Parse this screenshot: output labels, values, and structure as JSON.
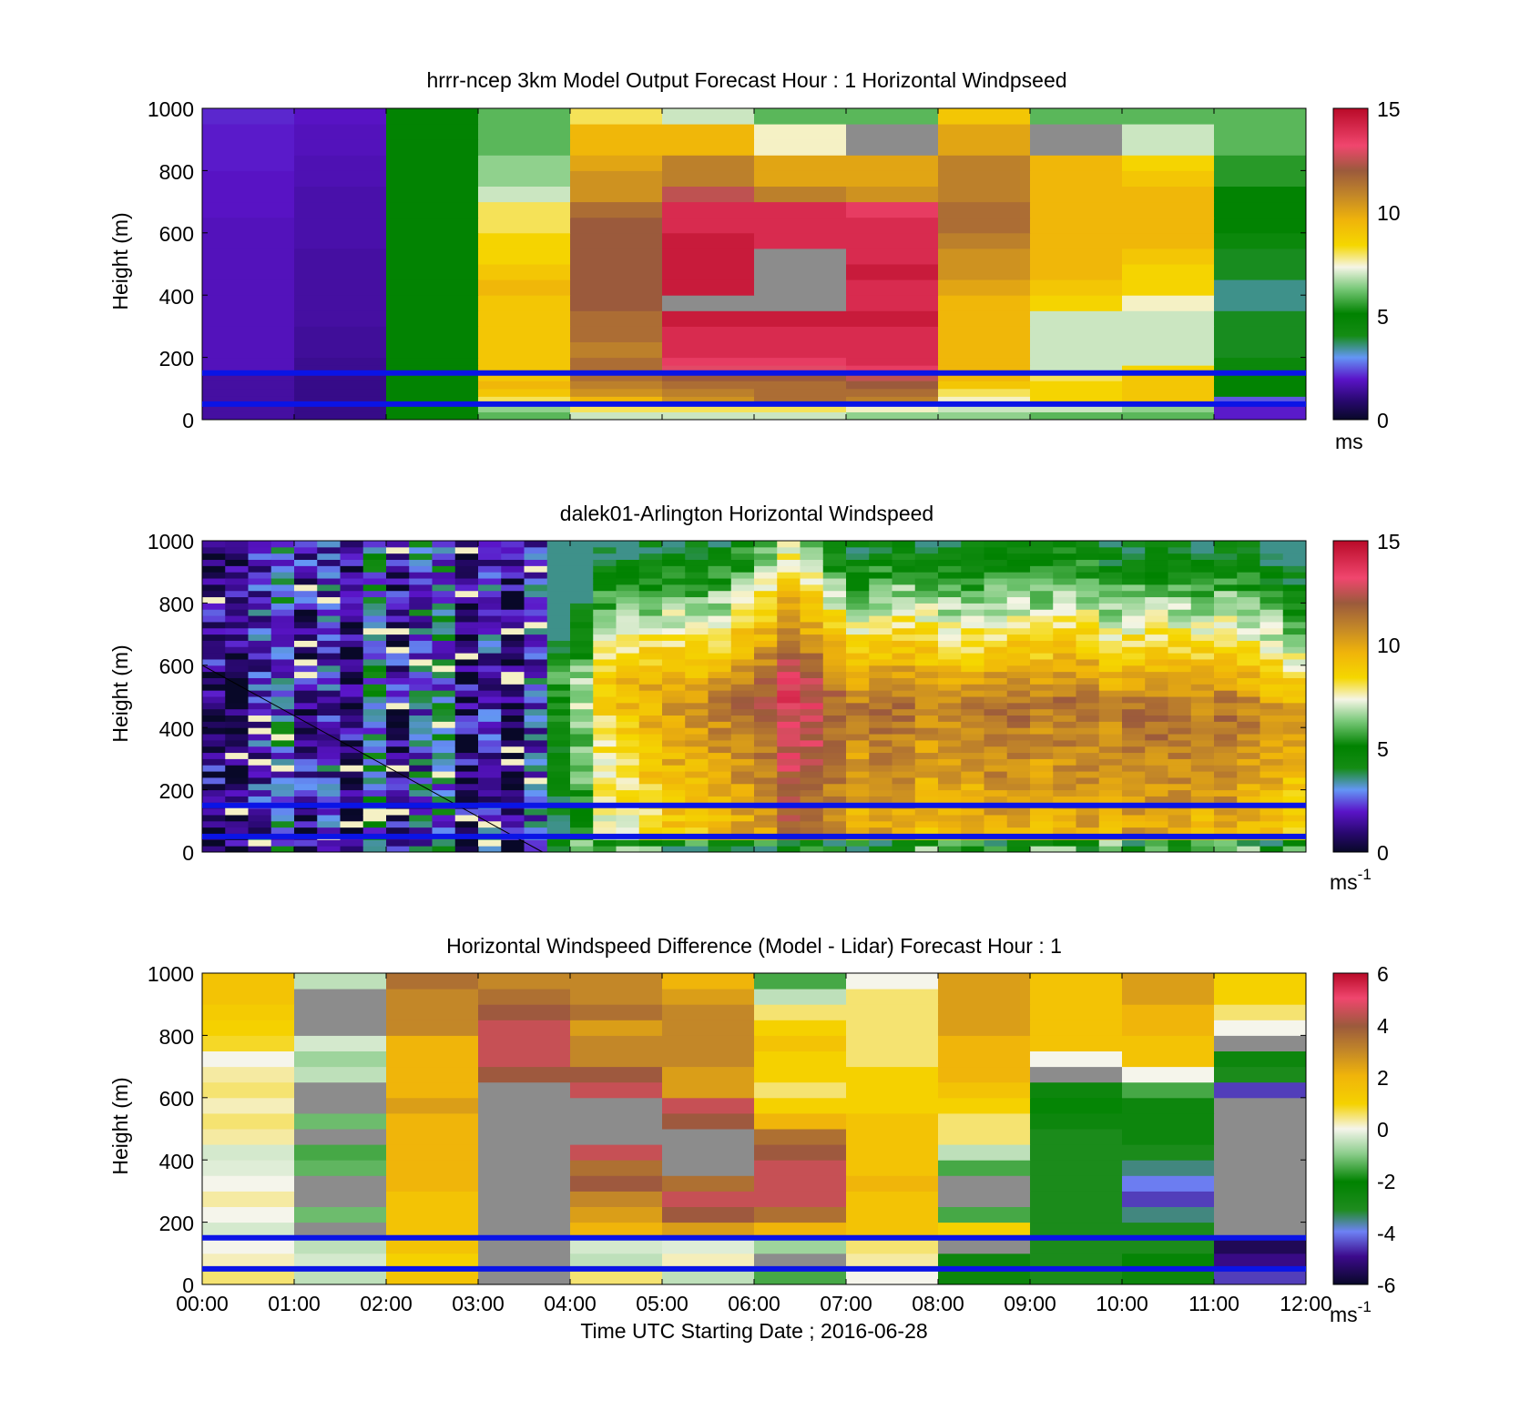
{
  "figure": {
    "x_axis": {
      "label": "Time UTC  Starting Date ; 2016-06-28",
      "tick_labels": [
        "00:00",
        "01:00",
        "02:00",
        "03:00",
        "04:00",
        "05:00",
        "06:00",
        "07:00",
        "08:00",
        "09:00",
        "10:00",
        "11:00",
        "12:00"
      ]
    },
    "y_axis": {
      "label": "Height (m)",
      "tick_labels": [
        "0",
        "200",
        "400",
        "600",
        "800",
        "1000"
      ]
    },
    "reference_lines_m": [
      150,
      50
    ],
    "reference_line_color": "#0a14e6"
  },
  "chart_data": [
    {
      "type": "heatmap",
      "title": "hrrr-ncep 3km Model Output   Forecast Hour : 1 Horizontal Windpseed",
      "xlabel": "",
      "ylabel": "Height (m)",
      "xlim": [
        0,
        12
      ],
      "ylim": [
        0,
        1000
      ],
      "colorbar": {
        "range": [
          0,
          15
        ],
        "ticks": [
          "0",
          "5",
          "10",
          "15"
        ],
        "unit_label": "ms",
        "unit_sup": ""
      },
      "x_hours": [
        0,
        1,
        2,
        3,
        4,
        5,
        6,
        7,
        8,
        9,
        10,
        11
      ],
      "y_levels_m": [
        0,
        25,
        50,
        75,
        100,
        125,
        150,
        175,
        200,
        250,
        300,
        350,
        400,
        450,
        500,
        550,
        600,
        650,
        700,
        750,
        800,
        850,
        900,
        950
      ],
      "values": [
        [
          1.5,
          1.2,
          5.0,
          6.0,
          7.0,
          7.0,
          7.0,
          6.5,
          6.5,
          6.0,
          6.0,
          2.0
        ],
        [
          1.5,
          1.2,
          5.0,
          6.5,
          8.0,
          8.0,
          8.0,
          7.5,
          7.0,
          7.0,
          6.5,
          2.0
        ],
        [
          1.5,
          1.2,
          5.0,
          8.0,
          9.5,
          10.5,
          11.5,
          11.0,
          7.5,
          8.5,
          9.0,
          2.5
        ],
        [
          1.5,
          1.2,
          5.0,
          9.0,
          10.5,
          11.0,
          11.5,
          11.5,
          8.0,
          8.5,
          9.0,
          5.0
        ],
        [
          1.5,
          1.2,
          5.0,
          9.5,
          11.0,
          11.5,
          11.5,
          12.0,
          9.0,
          8.5,
          9.0,
          5.0
        ],
        [
          1.5,
          1.2,
          5.0,
          9.0,
          11.5,
          12.0,
          12.0,
          12.5,
          9.5,
          8.0,
          9.0,
          5.0
        ],
        [
          1.8,
          1.3,
          5.0,
          9.0,
          11.5,
          13.0,
          13.0,
          13.5,
          9.5,
          7.0,
          8.5,
          4.5
        ],
        [
          1.8,
          1.3,
          5.0,
          9.0,
          11.5,
          13.5,
          13.5,
          14.0,
          9.5,
          7.0,
          7.0,
          4.5
        ],
        [
          1.8,
          1.4,
          5.0,
          9.0,
          11.0,
          14.0,
          14.0,
          14.0,
          9.5,
          7.0,
          7.0,
          4.0
        ],
        [
          1.8,
          1.4,
          5.0,
          9.0,
          11.5,
          14.0,
          14.0,
          14.0,
          9.5,
          7.0,
          7.0,
          4.0
        ],
        [
          1.8,
          1.5,
          5.0,
          9.0,
          11.5,
          14.5,
          14.5,
          14.5,
          9.5,
          7.0,
          7.0,
          4.0
        ],
        [
          1.8,
          1.5,
          5.0,
          9.0,
          12.0,
          -1,
          -1,
          14.0,
          9.5,
          8.5,
          7.5,
          3.5
        ],
        [
          1.8,
          1.5,
          5.0,
          9.5,
          12.0,
          14.5,
          -1,
          14.0,
          10.0,
          9.0,
          8.5,
          3.5
        ],
        [
          1.8,
          1.5,
          5.0,
          9.0,
          12.0,
          14.5,
          -1,
          14.5,
          10.5,
          9.5,
          8.5,
          4.0
        ],
        [
          1.8,
          1.5,
          5.0,
          8.5,
          12.0,
          14.5,
          -1,
          14.0,
          10.5,
          9.5,
          9.0,
          4.0
        ],
        [
          1.8,
          1.6,
          5.0,
          8.5,
          12.0,
          14.5,
          14.0,
          14.0,
          11.0,
          9.5,
          9.5,
          4.5
        ],
        [
          1.8,
          1.6,
          5.0,
          8.0,
          12.0,
          14.0,
          14.0,
          14.0,
          11.5,
          9.5,
          9.5,
          5.0
        ],
        [
          1.9,
          1.6,
          5.0,
          8.0,
          11.5,
          14.0,
          14.0,
          13.5,
          11.5,
          9.5,
          9.5,
          5.0
        ],
        [
          1.9,
          1.6,
          5.0,
          7.0,
          10.5,
          12.5,
          11.0,
          10.5,
          11.0,
          9.5,
          9.5,
          5.0
        ],
        [
          1.9,
          1.7,
          5.0,
          6.5,
          10.5,
          11.0,
          10.0,
          10.0,
          11.0,
          9.5,
          9.0,
          5.5
        ],
        [
          2.0,
          1.7,
          5.0,
          6.5,
          10.0,
          11.0,
          10.0,
          10.0,
          11.0,
          9.5,
          8.5,
          5.5
        ],
        [
          2.0,
          1.8,
          5.0,
          6.0,
          9.5,
          9.5,
          7.5,
          -1,
          10.0,
          -1,
          7.0,
          6.0
        ],
        [
          2.0,
          1.8,
          5.0,
          6.0,
          9.5,
          9.5,
          7.5,
          -1,
          10.0,
          -1,
          7.0,
          6.0
        ],
        [
          2.1,
          1.9,
          5.0,
          6.0,
          8.0,
          7.0,
          6.0,
          6.0,
          9.0,
          6.0,
          6.0,
          6.0
        ]
      ]
    },
    {
      "type": "heatmap",
      "title": "dalek01-Arlington  Horizontal Windspeed",
      "xlabel": "",
      "ylabel": "Height (m)",
      "xlim": [
        0,
        12
      ],
      "ylim": [
        0,
        1000
      ],
      "colorbar": {
        "range": [
          0,
          15
        ],
        "ticks": [
          "0",
          "5",
          "10",
          "15"
        ],
        "unit_label": "ms",
        "unit_sup": "-1"
      },
      "profile_times_h": [
        0,
        0.25,
        0.5,
        0.75,
        1,
        1.25,
        1.5,
        1.75,
        2,
        2.25,
        2.5,
        2.75,
        3,
        3.25,
        3.5,
        3.75,
        4,
        4.25,
        4.5,
        4.75,
        5,
        5.25,
        5.5,
        5.75,
        6,
        6.25,
        6.5,
        6.75,
        7,
        7.25,
        7.5,
        7.75,
        8,
        8.25,
        8.5,
        8.75,
        9,
        9.25,
        9.5,
        9.75,
        10,
        10.25,
        10.5,
        10.75,
        11,
        11.25,
        11.5,
        11.75
      ],
      "profile_width_h": 0.25,
      "level_spacing_m": 20,
      "coverage_top_m": [
        1000,
        1000,
        1000,
        1000,
        1000,
        1000,
        1000,
        1000,
        1000,
        1000,
        1000,
        1000,
        1000,
        1000,
        1000,
        1000,
        1000,
        1000,
        1000,
        1000,
        1000,
        1000,
        1000,
        1000,
        1000,
        1000,
        1000,
        1000,
        1000,
        1000,
        1000,
        1000,
        1000,
        1000,
        1000,
        1000,
        1000,
        1000,
        1000,
        1000,
        1000,
        1000,
        1000,
        1000,
        1000,
        1000,
        1000,
        1000
      ],
      "jet": {
        "start_h": 3.6,
        "jet_height_m": [
          0,
          0,
          0,
          0,
          0,
          0,
          0,
          0,
          0,
          0,
          0,
          0,
          0,
          0,
          0,
          560,
          520,
          560,
          540,
          520,
          500,
          480,
          480,
          500,
          520,
          520,
          480,
          460,
          460,
          460,
          470,
          480,
          470,
          460,
          450,
          460,
          470,
          480,
          470,
          450,
          430,
          430,
          440,
          450,
          440,
          450,
          440,
          430
        ],
        "jet_speed_ms": [
          0,
          0,
          0,
          0,
          0,
          0,
          0,
          0,
          0,
          0,
          0,
          0,
          0,
          0,
          0,
          5.5,
          7,
          9,
          9.5,
          10,
          10.5,
          10.5,
          11,
          11.5,
          12,
          13.5,
          13,
          12,
          11,
          11.5,
          11.5,
          11,
          11,
          11,
          11.5,
          11.5,
          11,
          11.5,
          11.5,
          11,
          11.5,
          11.5,
          11.5,
          11,
          11.5,
          11,
          10.5,
          10
        ]
      },
      "early_profile_mean_ms": [
        1.2,
        0.8,
        2.0,
        3.0,
        1.5,
        2.2,
        1.0,
        3.5,
        1.3,
        2.5,
        3.0,
        1.0,
        2.0,
        0.8,
        2.5,
        4.5
      ],
      "annotation_line_m": [
        [
          0,
          600
        ],
        [
          3.7,
          0
        ]
      ]
    },
    {
      "type": "heatmap",
      "title": "Horizontal Windspeed Difference (Model - Lidar) Forecast Hour : 1",
      "xlabel": "Time UTC  Starting Date ; 2016-06-28",
      "ylabel": "Height (m)",
      "xlim": [
        0,
        12
      ],
      "ylim": [
        0,
        1000
      ],
      "colorbar": {
        "range": [
          -6,
          6
        ],
        "ticks": [
          "-6",
          "-4",
          "-2",
          "0",
          "2",
          "4",
          "6"
        ],
        "unit_label": "ms",
        "unit_sup": "-1"
      },
      "x_hours": [
        0,
        1,
        2,
        3,
        4,
        5,
        6,
        7,
        8,
        9,
        10,
        11
      ],
      "y_levels_m": [
        0,
        50,
        100,
        150,
        200,
        250,
        300,
        350,
        400,
        450,
        500,
        550,
        600,
        650,
        700,
        750,
        800,
        850,
        900,
        950
      ],
      "values": [
        [
          0.5,
          -0.5,
          1.5,
          -99,
          0.5,
          -0.5,
          -1.5,
          0.0,
          -2.5,
          -3.0,
          -2.5,
          -4.5
        ],
        [
          0.2,
          -0.3,
          1.0,
          -99,
          -0.5,
          0.2,
          -1.0,
          0.3,
          -2.5,
          -3.0,
          -2.0,
          -5.0
        ],
        [
          0.0,
          -0.5,
          1.5,
          -99,
          -0.3,
          -0.2,
          -0.8,
          0.5,
          -1.0,
          -3.0,
          -3.0,
          -5.5
        ],
        [
          -0.3,
          -1.0,
          1.5,
          -99,
          2.0,
          2.5,
          2.0,
          1.5,
          1.0,
          -3.0,
          -3.0,
          -99
        ],
        [
          0.0,
          -1.2,
          1.5,
          -99,
          2.5,
          4.0,
          3.5,
          1.5,
          -1.5,
          -3.0,
          -3.5,
          -99
        ],
        [
          0.3,
          -1.0,
          1.5,
          -99,
          3.0,
          4.5,
          4.5,
          1.5,
          -1.0,
          -3.0,
          -4.5,
          -99
        ],
        [
          0.0,
          -1.0,
          2.0,
          -99,
          4.0,
          3.5,
          4.5,
          2.0,
          -1.0,
          -3.0,
          -4.0,
          -99
        ],
        [
          -0.2,
          -1.3,
          2.0,
          -99,
          3.5,
          -99,
          4.5,
          1.5,
          -1.5,
          -3.0,
          -3.5,
          -99
        ],
        [
          -0.3,
          -1.5,
          2.0,
          -99,
          4.5,
          -99,
          4.0,
          1.5,
          -0.5,
          -3.0,
          -3.0,
          -99
        ],
        [
          0.3,
          -1.0,
          2.0,
          -99,
          -99,
          -99,
          3.5,
          1.5,
          0.5,
          -3.0,
          -2.5,
          -99
        ],
        [
          0.5,
          -1.2,
          2.0,
          -99,
          -99,
          4.0,
          2.0,
          1.5,
          0.5,
          -2.5,
          -2.5,
          -99
        ],
        [
          0.2,
          -1.0,
          2.5,
          -99,
          -99,
          4.5,
          1.0,
          1.0,
          1.0,
          -2.0,
          -2.5,
          -99
        ],
        [
          0.5,
          -1.0,
          2.0,
          -99,
          4.5,
          2.5,
          0.5,
          1.0,
          1.5,
          -2.5,
          -1.5,
          -4.5
        ],
        [
          0.3,
          -0.5,
          2.0,
          4.0,
          4.0,
          2.5,
          1.0,
          1.0,
          2.0,
          -1.0,
          0.0,
          -3.0
        ],
        [
          0.0,
          -0.8,
          2.0,
          4.5,
          3.0,
          3.0,
          1.0,
          0.5,
          2.0,
          0.0,
          1.5,
          -2.5
        ],
        [
          0.8,
          -0.3,
          2.0,
          4.5,
          3.0,
          3.0,
          1.5,
          0.5,
          2.0,
          1.5,
          1.5,
          -1.0
        ],
        [
          1.0,
          -99,
          3.0,
          4.5,
          2.5,
          3.0,
          1.0,
          0.5,
          2.5,
          1.5,
          2.0,
          0.0
        ],
        [
          1.2,
          -99,
          3.0,
          4.0,
          3.5,
          3.0,
          0.5,
          0.5,
          2.5,
          1.5,
          2.0,
          0.5
        ],
        [
          1.5,
          -99,
          3.0,
          3.5,
          3.0,
          2.5,
          -0.5,
          0.5,
          2.5,
          1.5,
          2.5,
          1.0
        ],
        [
          1.5,
          -0.5,
          3.5,
          3.0,
          3.0,
          2.0,
          -1.5,
          0.0,
          2.5,
          1.5,
          2.5,
          1.0
        ]
      ]
    }
  ]
}
